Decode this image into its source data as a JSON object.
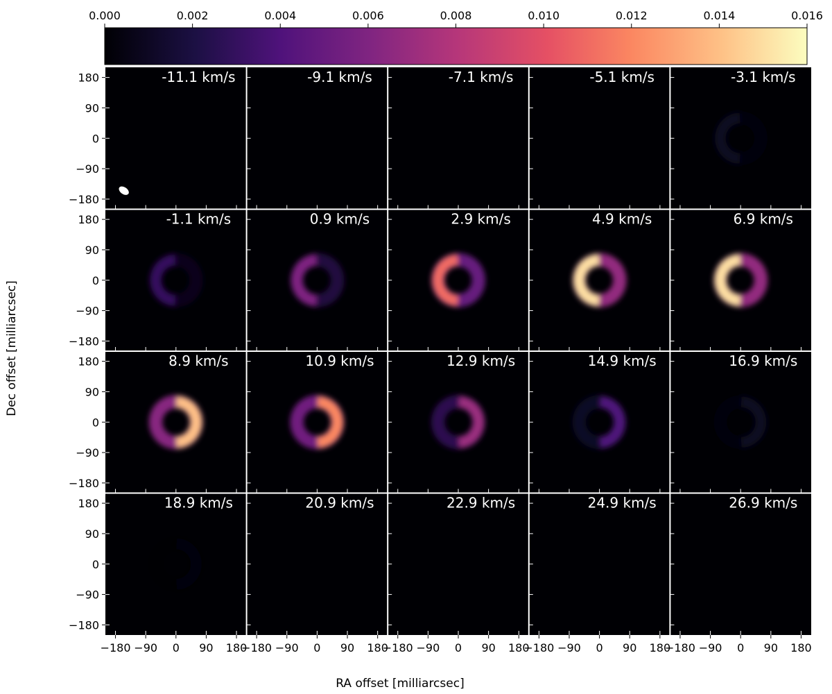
{
  "chart_data": {
    "type": "heatmap",
    "title": "",
    "xlabel": "RA offset [milliarcsec]",
    "ylabel": "Dec offset [milliarcsec]",
    "xlim": [
      -210,
      210
    ],
    "ylim": [
      -210,
      210
    ],
    "x_ticks": [
      -180,
      -90,
      0,
      90,
      180
    ],
    "y_ticks": [
      180,
      90,
      0,
      -90,
      -180
    ],
    "x_tick_labels": [
      "−180",
      "−90",
      "0",
      "90",
      "180"
    ],
    "y_tick_labels": [
      "180",
      "90",
      "0",
      "−90",
      "−180"
    ],
    "colormap": "magma",
    "colorbar": {
      "range": [
        0.0,
        0.016
      ],
      "ticks": [
        0.0,
        0.002,
        0.004,
        0.006,
        0.008,
        0.01,
        0.012,
        0.014,
        0.016
      ],
      "tick_labels": [
        "0.000",
        "0.002",
        "0.004",
        "0.006",
        "0.008",
        "0.010",
        "0.012",
        "0.014",
        "0.016"
      ],
      "placement": "top"
    },
    "grid": false,
    "layout": {
      "rows": 4,
      "cols": 5
    },
    "beam": {
      "panel": 0,
      "position": "bottom-left",
      "color": "#ffffff"
    },
    "channels": [
      {
        "label": "-11.1 km/s",
        "intensity": 0.0,
        "bright_side": "left"
      },
      {
        "label": "-9.1 km/s",
        "intensity": 0.0,
        "bright_side": "left"
      },
      {
        "label": "-7.1 km/s",
        "intensity": 0.0,
        "bright_side": "left"
      },
      {
        "label": "-5.1 km/s",
        "intensity": 0.0,
        "bright_side": "left"
      },
      {
        "label": "-3.1 km/s",
        "intensity": 0.001,
        "bright_side": "left"
      },
      {
        "label": "-1.1 km/s",
        "intensity": 0.003,
        "bright_side": "left"
      },
      {
        "label": "0.9 km/s",
        "intensity": 0.006,
        "bright_side": "left"
      },
      {
        "label": "2.9 km/s",
        "intensity": 0.011,
        "bright_side": "left"
      },
      {
        "label": "4.9 km/s",
        "intensity": 0.015,
        "bright_side": "left"
      },
      {
        "label": "6.9 km/s",
        "intensity": 0.015,
        "bright_side": "left"
      },
      {
        "label": "8.9 km/s",
        "intensity": 0.014,
        "bright_side": "right"
      },
      {
        "label": "10.9 km/s",
        "intensity": 0.012,
        "bright_side": "right"
      },
      {
        "label": "12.9 km/s",
        "intensity": 0.007,
        "bright_side": "right"
      },
      {
        "label": "14.9 km/s",
        "intensity": 0.004,
        "bright_side": "right"
      },
      {
        "label": "16.9 km/s",
        "intensity": 0.001,
        "bright_side": "right"
      },
      {
        "label": "18.9 km/s",
        "intensity": 0.0003,
        "bright_side": "right"
      },
      {
        "label": "20.9 km/s",
        "intensity": 0.0,
        "bright_side": "right"
      },
      {
        "label": "22.9 km/s",
        "intensity": 0.0,
        "bright_side": "right"
      },
      {
        "label": "24.9 km/s",
        "intensity": 0.0,
        "bright_side": "right"
      },
      {
        "label": "26.9 km/s",
        "intensity": 0.0,
        "bright_side": "right"
      }
    ]
  }
}
